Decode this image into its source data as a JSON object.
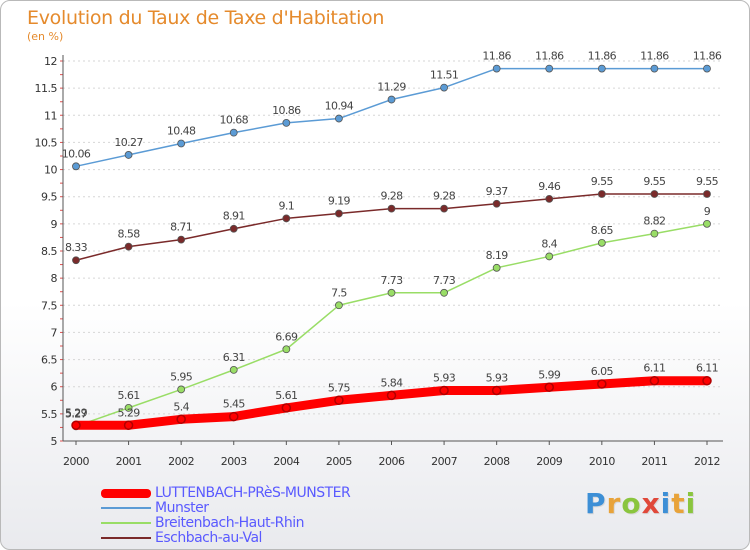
{
  "chart_data": {
    "type": "line",
    "title": "Evolution du Taux de Taxe d'Habitation",
    "unit_label": "(en %)",
    "x": [
      "2000",
      "2001",
      "2002",
      "2003",
      "2004",
      "2005",
      "2006",
      "2007",
      "2008",
      "2009",
      "2010",
      "2011",
      "2012"
    ],
    "ylim": [
      5,
      12
    ],
    "yticks": [
      "5",
      "5.5",
      "6",
      "6.5",
      "7",
      "7.5",
      "8",
      "8.5",
      "9",
      "9.5",
      "10",
      "10.5",
      "11",
      "11.5",
      "12"
    ],
    "series": [
      {
        "name": "LUTTENBACH-PRèS-MUNSTER",
        "color": "#ff0000",
        "values": [
          5.29,
          5.29,
          5.4,
          5.45,
          5.61,
          5.75,
          5.84,
          5.93,
          5.93,
          5.99,
          6.05,
          6.11,
          6.11
        ],
        "labels": [
          "5.29",
          "5.29",
          "5.4",
          "5.45",
          "5.61",
          "5.75",
          "5.84",
          "5.93",
          "5.93",
          "5.99",
          "6.05",
          "6.11",
          "6.11"
        ]
      },
      {
        "name": "Munster",
        "color": "#5b9bd5",
        "values": [
          10.06,
          10.27,
          10.48,
          10.68,
          10.86,
          10.94,
          11.29,
          11.51,
          11.86,
          11.86,
          11.86,
          11.86,
          11.86
        ],
        "labels": [
          "10.06",
          "10.27",
          "10.48",
          "10.68",
          "10.86",
          "10.94",
          "11.29",
          "11.51",
          "11.86",
          "11.86",
          "11.86",
          "11.86",
          "11.86"
        ]
      },
      {
        "name": "Breitenbach-Haut-Rhin",
        "color": "#99dd66",
        "values": [
          5.27,
          5.61,
          5.95,
          6.31,
          6.69,
          7.5,
          7.73,
          7.73,
          8.19,
          8.4,
          8.65,
          8.82,
          9.0
        ],
        "labels": [
          "5.27",
          "5.61",
          "5.95",
          "6.31",
          "6.69",
          "7.5",
          "7.73",
          "7.73",
          "8.19",
          "8.4",
          "8.65",
          "8.82",
          "9"
        ]
      },
      {
        "name": "Eschbach-au-Val",
        "color": "#7a2a2a",
        "values": [
          8.33,
          8.58,
          8.71,
          8.91,
          9.1,
          9.19,
          9.28,
          9.28,
          9.37,
          9.46,
          9.55,
          9.55,
          9.55
        ],
        "labels": [
          "8.33",
          "8.58",
          "8.71",
          "8.91",
          "9.1",
          "9.19",
          "9.28",
          "9.28",
          "9.37",
          "9.46",
          "9.55",
          "9.55",
          "9.55"
        ]
      }
    ],
    "grid": "horizontal",
    "legend_position": "bottom-left"
  },
  "logo": {
    "letters": [
      "P",
      "r",
      "o",
      "x",
      "i",
      "t",
      "i"
    ],
    "colors": [
      "#3d8fd6",
      "#e8a33a",
      "#8ac53e",
      "#e0483a",
      "#3d8fd6",
      "#e8a33a",
      "#8ac53e"
    ]
  }
}
